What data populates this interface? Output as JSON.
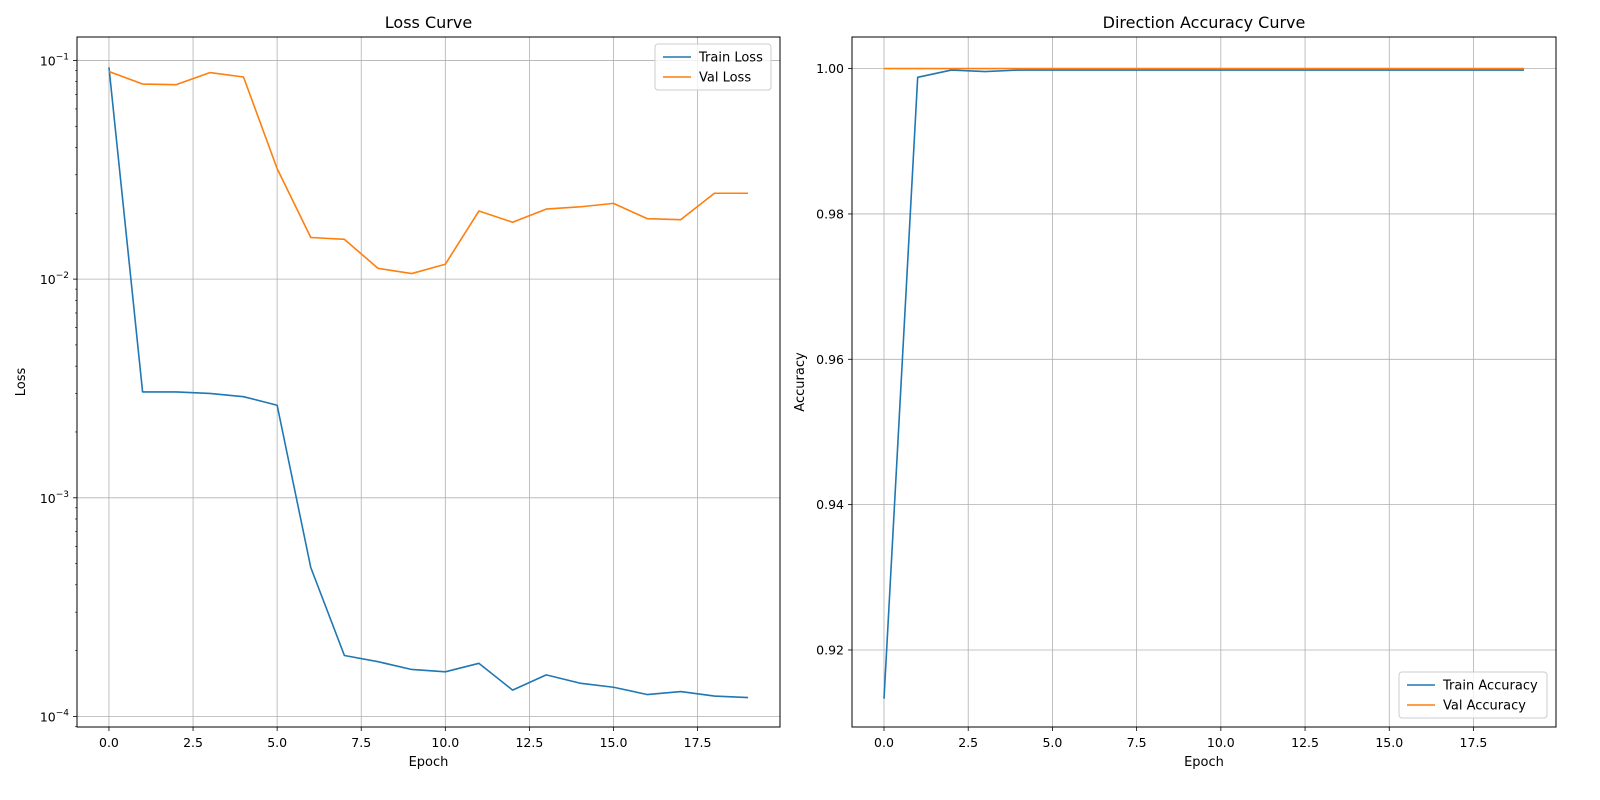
{
  "chart_data": [
    {
      "type": "line",
      "title": "Loss Curve",
      "xlabel": "Epoch",
      "ylabel": "Loss",
      "yscale": "log",
      "xlim": [
        -0.95,
        19.95
      ],
      "ylim": [
        8.95e-05,
        0.128
      ],
      "grid": true,
      "legend_position": "top-right",
      "x_ticks": [
        "0.0",
        "2.5",
        "5.0",
        "7.5",
        "10.0",
        "12.5",
        "15.0",
        "17.5"
      ],
      "y_ticks": [
        {
          "base": "10",
          "exp": "−4",
          "value": 0.0001
        },
        {
          "base": "10",
          "exp": "−3",
          "value": 0.001
        },
        {
          "base": "10",
          "exp": "−2",
          "value": 0.01
        },
        {
          "base": "10",
          "exp": "−1",
          "value": 0.1
        }
      ],
      "x": [
        0,
        1,
        2,
        3,
        4,
        5,
        6,
        7,
        8,
        9,
        10,
        11,
        12,
        13,
        14,
        15,
        16,
        17,
        18,
        19
      ],
      "series": [
        {
          "name": "Train Loss",
          "color": "#1f77b4",
          "values": [
            0.093,
            0.00305,
            0.00305,
            0.003,
            0.0029,
            0.00265,
            0.00048,
            0.00019,
            0.000178,
            0.000164,
            0.00016,
            0.000175,
            0.000132,
            0.000155,
            0.000142,
            0.000136,
            0.000126,
            0.00013,
            0.000124,
            0.000122
          ]
        },
        {
          "name": "Val Loss",
          "color": "#ff7f0e",
          "values": [
            0.089,
            0.078,
            0.0775,
            0.088,
            0.084,
            0.032,
            0.0155,
            0.0152,
            0.0112,
            0.0106,
            0.0117,
            0.0205,
            0.0182,
            0.0209,
            0.0214,
            0.0222,
            0.0189,
            0.0187,
            0.0247,
            0.0247
          ]
        }
      ]
    },
    {
      "type": "line",
      "title": "Direction Accuracy Curve",
      "xlabel": "Epoch",
      "ylabel": "Accuracy",
      "yscale": "linear",
      "xlim": [
        -0.95,
        19.95
      ],
      "ylim": [
        0.9094,
        1.00435
      ],
      "grid": true,
      "legend_position": "bottom-right",
      "x_ticks": [
        "0.0",
        "2.5",
        "5.0",
        "7.5",
        "10.0",
        "12.5",
        "15.0",
        "17.5"
      ],
      "y_ticks": [
        "0.92",
        "0.94",
        "0.96",
        "0.98",
        "1.00"
      ],
      "x": [
        0,
        1,
        2,
        3,
        4,
        5,
        6,
        7,
        8,
        9,
        10,
        11,
        12,
        13,
        14,
        15,
        16,
        17,
        18,
        19
      ],
      "series": [
        {
          "name": "Train Accuracy",
          "color": "#1f77b4",
          "values": [
            0.9133,
            0.9988,
            0.9998,
            0.9996,
            0.9998,
            0.9998,
            0.9998,
            0.9998,
            0.9998,
            0.9998,
            0.9998,
            0.9998,
            0.9998,
            0.9998,
            0.9998,
            0.9998,
            0.9998,
            0.9998,
            0.9998,
            0.9998
          ]
        },
        {
          "name": "Val Accuracy",
          "color": "#ff7f0e",
          "values": [
            1.0,
            1.0,
            1.0,
            1.0,
            1.0,
            1.0,
            1.0,
            1.0,
            1.0,
            1.0,
            1.0,
            1.0,
            1.0,
            1.0,
            1.0,
            1.0,
            1.0,
            1.0,
            1.0,
            1.0
          ]
        }
      ]
    }
  ]
}
